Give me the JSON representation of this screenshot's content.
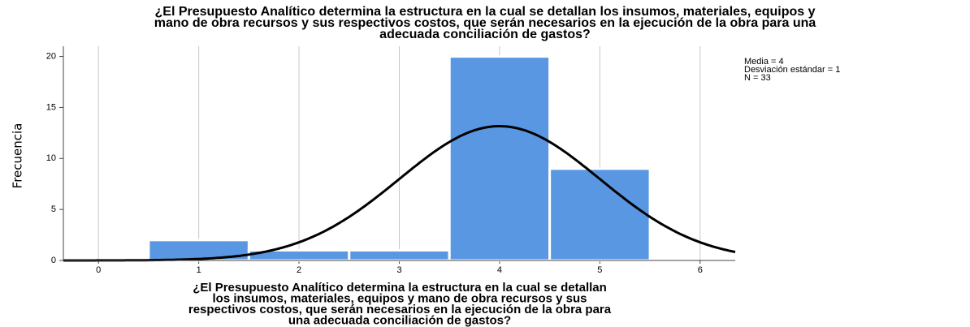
{
  "chart_data": {
    "type": "histogram",
    "title": [
      "¿El Presupuesto Analítico determina la estructura en la cual se detallan los insumos, materiales, equipos y",
      "mano de obra recursos y sus respectivos costos, que serán necesarios en la ejecución de la obra para una",
      "adecuada conciliación de gastos?"
    ],
    "x_label": [
      "¿El Presupuesto Analítico determina la estructura en la cual se detallan",
      "los insumos, materiales, equipos y mano de obra recursos y sus",
      "respectivos costos, que serán necesarios en la ejecución de la obra para",
      "una adecuada conciliación de gastos?"
    ],
    "y_label": "Frecuencia",
    "bins": [
      0.5,
      1.5,
      2.5,
      3.5,
      4.5,
      5.5
    ],
    "values": [
      2,
      1,
      1,
      20,
      9
    ],
    "color": "#5a97e3",
    "curve_color": "#000000",
    "stats": [
      {
        "value": 4,
        "label": "Media = 4"
      },
      {
        "value": 1,
        "label": "Desviación estándar = 1"
      },
      {
        "value": 33,
        "label": "N = 33"
      }
    ],
    "xlim": [
      -0.35,
      6.35
    ],
    "xticks": [
      0,
      1,
      2,
      3,
      4,
      5,
      6
    ],
    "ylim": [
      0,
      21
    ],
    "yticks": [
      0,
      5,
      10,
      15,
      20
    ],
    "grid": true
  }
}
